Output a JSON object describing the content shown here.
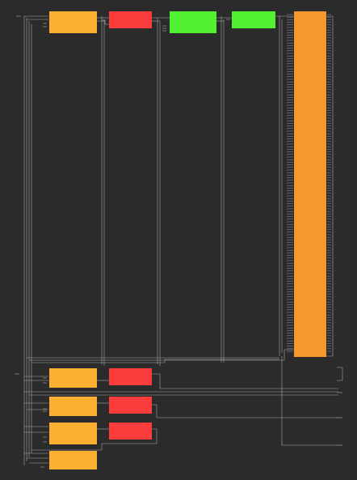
{
  "diagram": {
    "background": "#2b2b2b",
    "wire_color": "#bdbdbd",
    "palette": {
      "amber": "#fbb034",
      "red": "#fb3c3c",
      "green": "#52f032",
      "orange": "#f4992f"
    },
    "blocks": [
      {
        "name": "block-amber-top",
        "color": "amber"
      },
      {
        "name": "block-red-top",
        "color": "red"
      },
      {
        "name": "block-green-top-1",
        "color": "green"
      },
      {
        "name": "block-green-top-2",
        "color": "green"
      },
      {
        "name": "block-orange-bus",
        "color": "orange"
      },
      {
        "name": "block-amber-row-1",
        "color": "amber"
      },
      {
        "name": "block-red-row-1",
        "color": "red"
      },
      {
        "name": "block-amber-row-2",
        "color": "amber"
      },
      {
        "name": "block-red-row-2",
        "color": "red"
      },
      {
        "name": "block-amber-row-3",
        "color": "amber"
      },
      {
        "name": "block-red-row-3",
        "color": "red"
      },
      {
        "name": "block-amber-row-4",
        "color": "amber"
      }
    ]
  }
}
